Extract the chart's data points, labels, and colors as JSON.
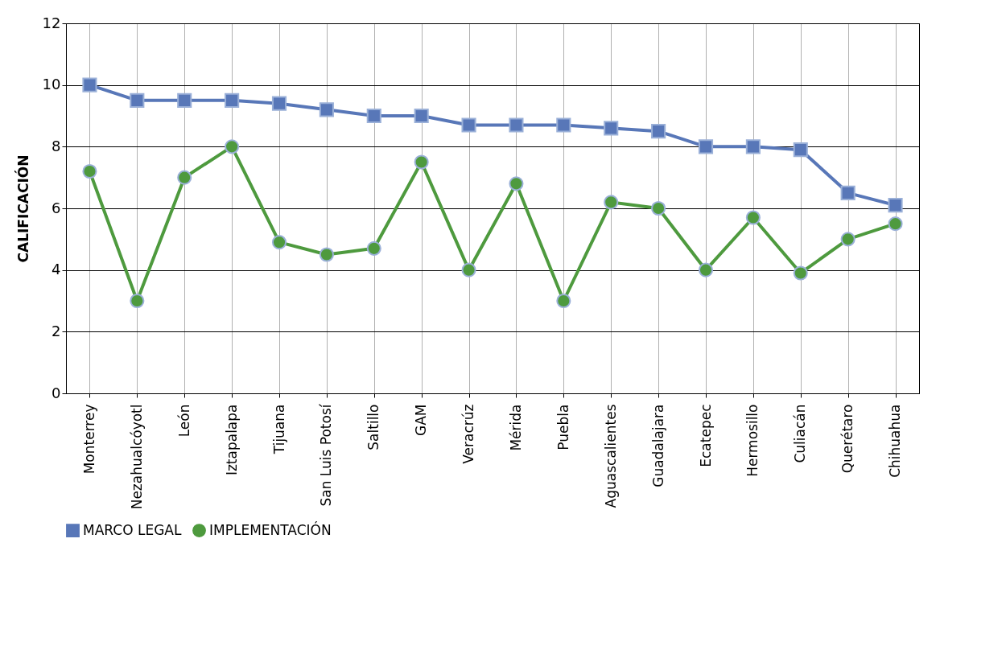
{
  "chart_data": {
    "type": "line",
    "ylabel": "CALIFICACIÓN",
    "categories": [
      "Monterrey",
      "Nezahualcóyotl",
      "León",
      "Iztapalapa",
      "Tijuana",
      "San Luis Potosí",
      "Saltillo",
      "GAM",
      "Veracrúz",
      "Mérida",
      "Puebla",
      "Aguascalientes",
      "Guadalajara",
      "Ecatepec",
      "Hermosillo",
      "Culiacán",
      "Querétaro",
      "Chihuahua"
    ],
    "series": [
      {
        "name": "MARCO LEGAL",
        "color": "#5877b8",
        "marker": "square",
        "values": [
          10,
          9.5,
          9.5,
          9.5,
          9.4,
          9.2,
          9,
          9,
          8.7,
          8.7,
          8.7,
          8.6,
          8.5,
          8,
          8,
          7.9,
          6.5,
          6.1
        ]
      },
      {
        "name": "IMPLEMENTACIÓN",
        "color": "#4e9a3e",
        "marker": "circle",
        "values": [
          7.2,
          3,
          7,
          8,
          4.9,
          4.5,
          4.7,
          7.5,
          4,
          6.8,
          3,
          6.2,
          6,
          4,
          5.7,
          3.9,
          5,
          5.5
        ]
      }
    ],
    "ylim": [
      0,
      12
    ],
    "yticks": [
      0,
      2,
      4,
      6,
      8,
      10,
      12
    ],
    "grid": true,
    "legend": "bottom",
    "line_style": "solid"
  }
}
